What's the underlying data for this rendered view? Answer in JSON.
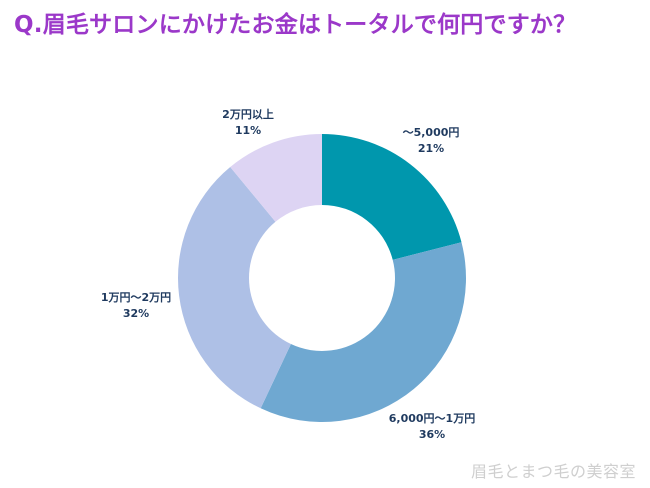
{
  "title": "Q.眉毛サロンにかけたお金はトータルで何円ですか？",
  "watermark": "眉毛とまつ毛の美容室",
  "chart_data": {
    "type": "pie",
    "donut": true,
    "categories": [
      "～5,000円",
      "6,000円～1万円",
      "1万円～2万円",
      "2万円以上"
    ],
    "values": [
      21,
      36,
      32,
      11
    ],
    "value_labels": [
      "21%",
      "36%",
      "32%",
      "11%"
    ],
    "colors": [
      "#0097ad",
      "#6fa8d1",
      "#aec0e6",
      "#ddd4f3"
    ]
  }
}
